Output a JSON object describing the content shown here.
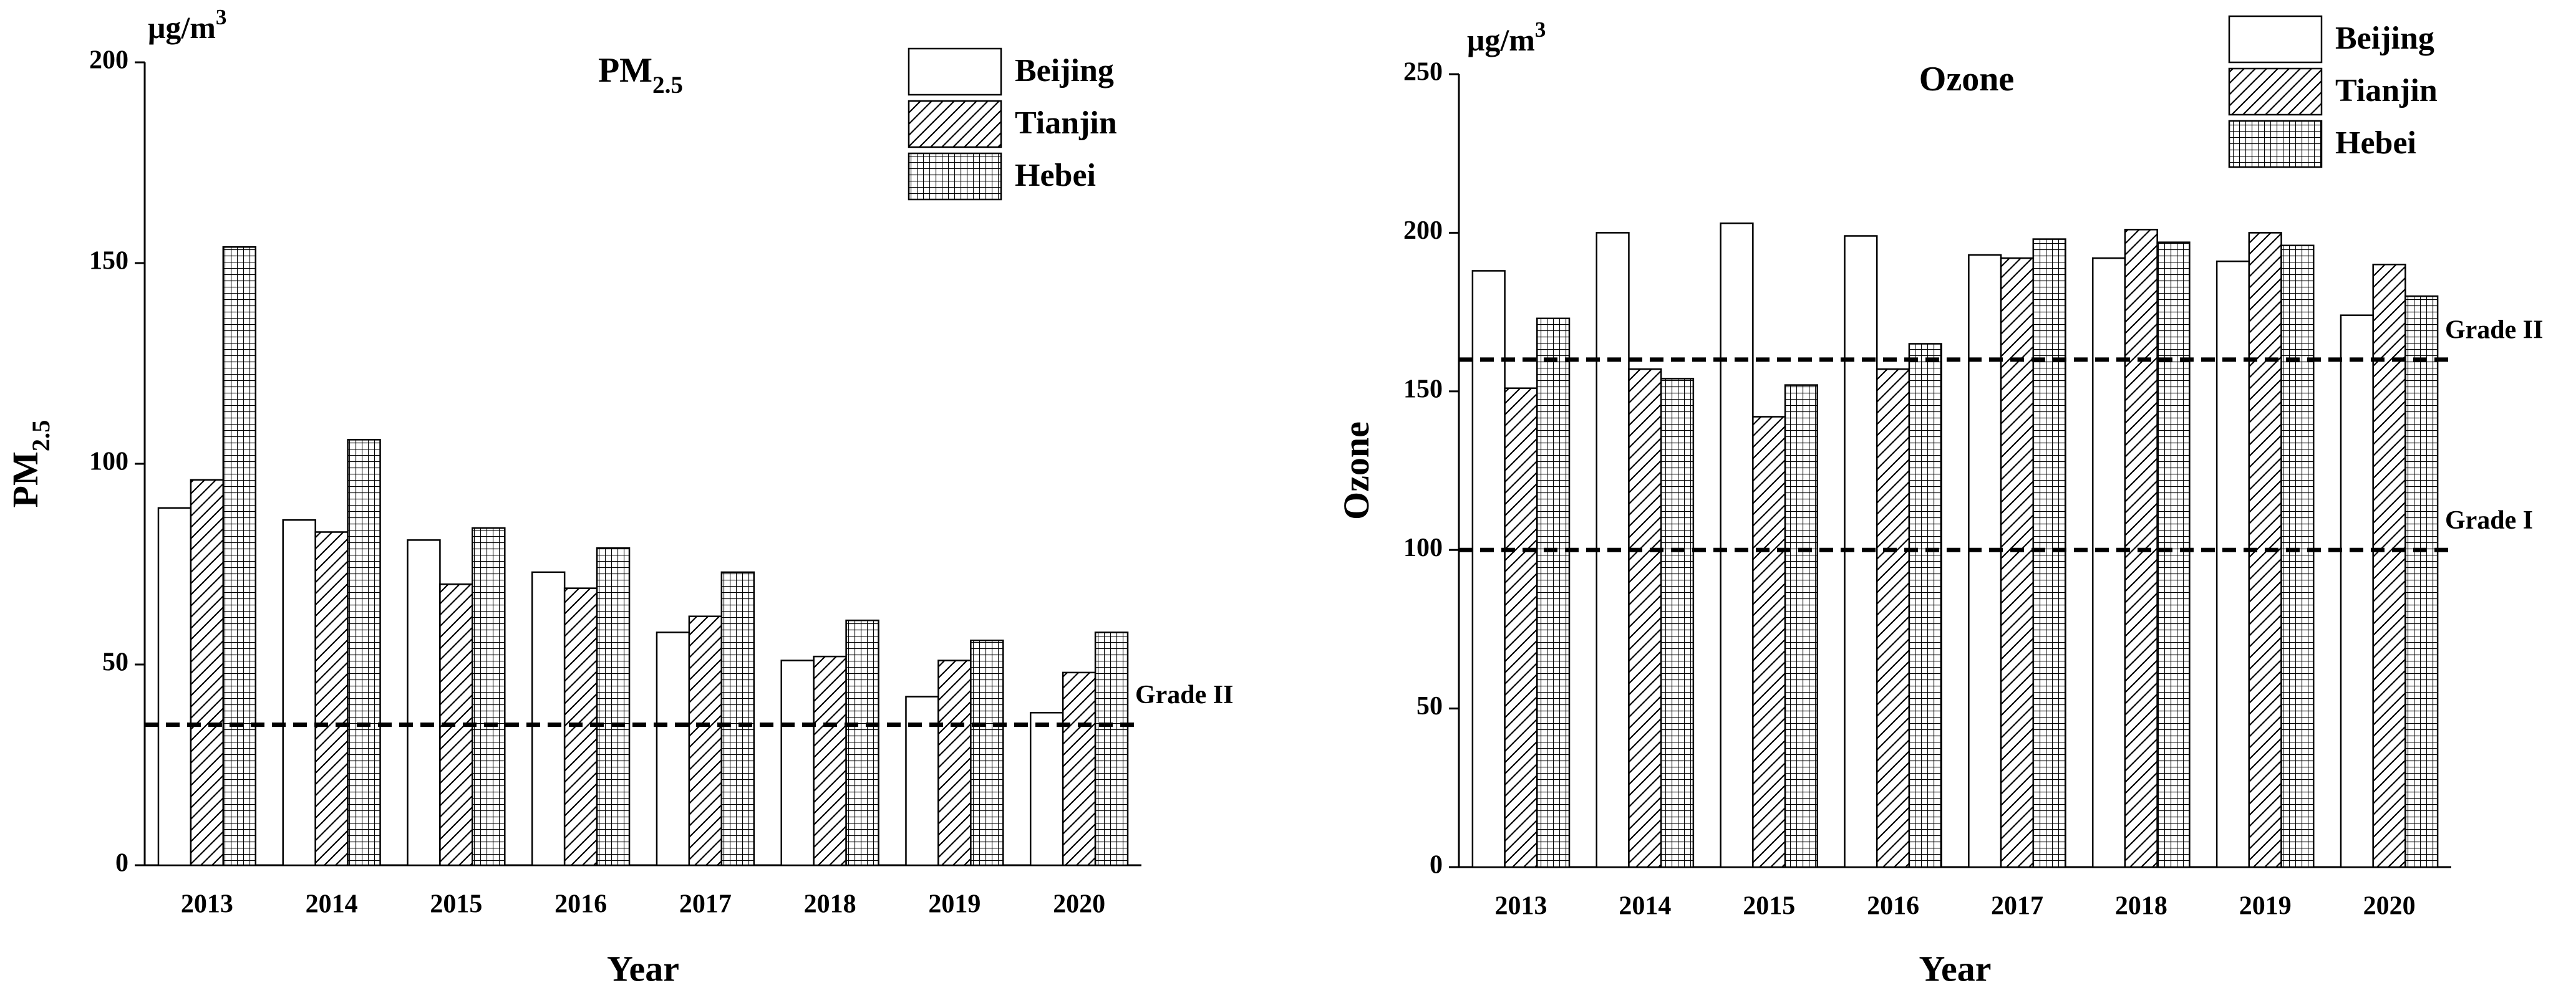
{
  "chart_data": [
    {
      "type": "bar",
      "title": "PM",
      "title_subscript": "2.5",
      "unit": "μg/m",
      "unit_superscript": "3",
      "y_label": "PM",
      "y_label_subscript": "2.5",
      "x_label": "Year",
      "categories": [
        "2013",
        "2014",
        "2015",
        "2016",
        "2017",
        "2018",
        "2019",
        "2020"
      ],
      "series": [
        {
          "name": "Beijing",
          "color": "#000000",
          "pattern": "none",
          "values": [
            89,
            86,
            81,
            73,
            58,
            51,
            42,
            38
          ]
        },
        {
          "name": "Tianjin",
          "color": "#000000",
          "pattern": "diagonal",
          "values": [
            96,
            83,
            70,
            69,
            62,
            52,
            51,
            48
          ]
        },
        {
          "name": "Hebei",
          "color": "#000000",
          "pattern": "grid",
          "values": [
            154,
            106,
            84,
            79,
            73,
            61,
            56,
            58
          ]
        }
      ],
      "reference_lines": [
        {
          "value": 35,
          "label": "Grade II"
        }
      ],
      "ylim": [
        0,
        200
      ],
      "yticks": [
        0,
        50,
        100,
        150,
        200
      ],
      "legend": "top-right"
    },
    {
      "type": "bar",
      "title": "Ozone",
      "unit": "μg/m",
      "unit_superscript": "3",
      "y_label": "Ozone",
      "x_label": "Year",
      "categories": [
        "2013",
        "2014",
        "2015",
        "2016",
        "2017",
        "2018",
        "2019",
        "2020"
      ],
      "series": [
        {
          "name": "Beijing",
          "color": "#000000",
          "pattern": "none",
          "values": [
            188,
            200,
            203,
            199,
            193,
            192,
            191,
            174
          ]
        },
        {
          "name": "Tianjin",
          "color": "#000000",
          "pattern": "diagonal",
          "values": [
            151,
            157,
            142,
            157,
            192,
            201,
            200,
            190
          ]
        },
        {
          "name": "Hebei",
          "color": "#000000",
          "pattern": "grid",
          "values": [
            173,
            154,
            152,
            165,
            198,
            197,
            196,
            180
          ]
        }
      ],
      "reference_lines": [
        {
          "value": 160,
          "label": "Grade II"
        },
        {
          "value": 100,
          "label": "Grade I"
        }
      ],
      "ylim": [
        0,
        250
      ],
      "yticks": [
        0,
        50,
        100,
        150,
        200,
        250
      ],
      "legend": "top-right"
    }
  ]
}
